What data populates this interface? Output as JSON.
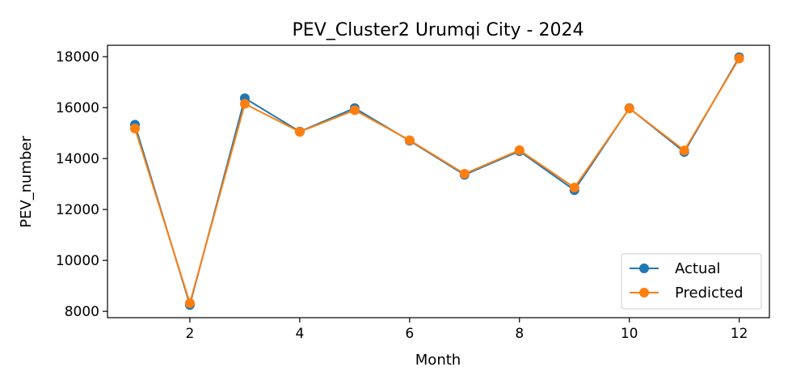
{
  "chart_data": {
    "type": "line",
    "title": "PEV_Cluster2 Urumqi City - 2024",
    "xlabel": "Month",
    "ylabel": "PEV_number",
    "x": [
      1,
      2,
      3,
      4,
      5,
      6,
      7,
      8,
      9,
      10,
      11,
      12
    ],
    "xlim": [
      0.5,
      12.55
    ],
    "ylim": [
      7750,
      18450
    ],
    "xticks": [
      2,
      4,
      6,
      8,
      10,
      12
    ],
    "yticks": [
      8000,
      10000,
      12000,
      14000,
      16000,
      18000
    ],
    "grid": false,
    "legend_position": "lower-right",
    "series": [
      {
        "name": "Actual",
        "color": "#1f77b4",
        "marker": "circle",
        "values": [
          15330,
          8250,
          16370,
          15060,
          15980,
          14700,
          13360,
          14290,
          12760,
          15980,
          14260,
          17980
        ]
      },
      {
        "name": "Predicted",
        "color": "#ff7f0e",
        "marker": "circle",
        "values": [
          15180,
          8320,
          16150,
          15050,
          15900,
          14720,
          13400,
          14330,
          12860,
          15970,
          14320,
          17930
        ]
      }
    ]
  }
}
